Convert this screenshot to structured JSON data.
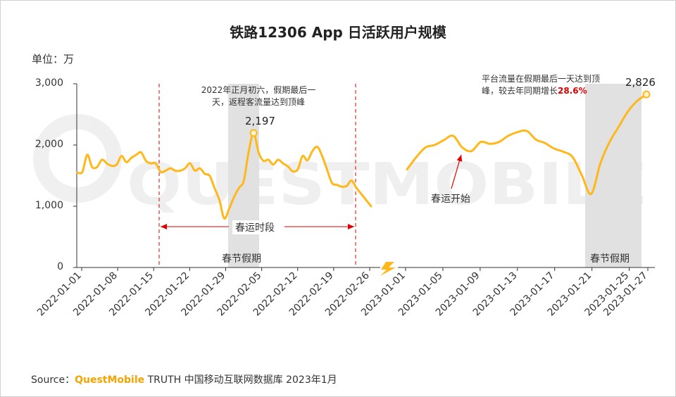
{
  "chart_data": {
    "type": "line",
    "title": "铁路12306 App 日活跃用户规模",
    "unit_label": "单位：万",
    "y_ticks": [
      "3,000",
      "2,000",
      "1,000",
      "0"
    ],
    "ylim": [
      0,
      3000
    ],
    "grid": false,
    "series_color": "#FFB81C",
    "panels": [
      {
        "x_tick_labels": [
          "2022-01-01",
          "2022-01-08",
          "2022-01-15",
          "2022-01-22",
          "2022-01-29",
          "2022-02-05",
          "2022-02-12",
          "2022-02-19",
          "2022-02-26"
        ],
        "x_start": "2022-01-01",
        "x_end": "2022-03-02",
        "x": [
          "2022-01-01",
          "2022-01-02",
          "2022-01-03",
          "2022-01-04",
          "2022-01-05",
          "2022-01-06",
          "2022-01-07",
          "2022-01-08",
          "2022-01-09",
          "2022-01-10",
          "2022-01-11",
          "2022-01-12",
          "2022-01-13",
          "2022-01-14",
          "2022-01-15",
          "2022-01-16",
          "2022-01-17",
          "2022-01-18",
          "2022-01-19",
          "2022-01-20",
          "2022-01-21",
          "2022-01-22",
          "2022-01-23",
          "2022-01-24",
          "2022-01-25",
          "2022-01-26",
          "2022-01-27",
          "2022-01-28",
          "2022-01-29",
          "2022-01-30",
          "2022-01-31",
          "2022-02-01",
          "2022-02-02",
          "2022-02-03",
          "2022-02-04",
          "2022-02-05",
          "2022-02-06",
          "2022-02-07",
          "2022-02-08",
          "2022-02-09",
          "2022-02-10",
          "2022-02-11",
          "2022-02-12",
          "2022-02-13",
          "2022-02-14",
          "2022-02-15",
          "2022-02-16",
          "2022-02-17",
          "2022-02-18",
          "2022-02-19",
          "2022-02-20",
          "2022-02-21",
          "2022-02-22",
          "2022-02-23",
          "2022-02-24",
          "2022-02-25",
          "2022-02-26",
          "2022-02-27",
          "2022-02-28",
          "2022-03-01",
          "2022-03-02"
        ],
        "values": [
          1550,
          1560,
          1840,
          1640,
          1640,
          1760,
          1700,
          1660,
          1680,
          1820,
          1720,
          1790,
          1840,
          1880,
          1740,
          1700,
          1700,
          1560,
          1580,
          1620,
          1580,
          1580,
          1620,
          1700,
          1580,
          1620,
          1530,
          1500,
          1300,
          1100,
          800,
          960,
          1150,
          1300,
          1420,
          1900,
          2197,
          1880,
          1740,
          1760,
          1680,
          1760,
          1700,
          1650,
          1570,
          1600,
          1820,
          1750,
          1900,
          1970,
          1820,
          1600,
          1380,
          1350,
          1320,
          1330,
          1420,
          1300,
          1200,
          1100,
          1000
        ],
        "peak": {
          "label": "2,197",
          "value": 2197,
          "date": "2022-02-06"
        }
      },
      {
        "x_tick_labels": [
          "2023-01-01",
          "2023-01-05",
          "2023-01-09",
          "2023-01-13",
          "2023-01-17",
          "2023-01-21",
          "2023-01-25",
          "2023-01-27"
        ],
        "x_start": "2023-01-01",
        "x_end": "2023-01-27",
        "x": [
          "2023-01-01",
          "2023-01-02",
          "2023-01-03",
          "2023-01-04",
          "2023-01-05",
          "2023-01-06",
          "2023-01-07",
          "2023-01-08",
          "2023-01-09",
          "2023-01-10",
          "2023-01-11",
          "2023-01-12",
          "2023-01-13",
          "2023-01-14",
          "2023-01-15",
          "2023-01-16",
          "2023-01-17",
          "2023-01-18",
          "2023-01-19",
          "2023-01-20",
          "2023-01-21",
          "2023-01-22",
          "2023-01-23",
          "2023-01-24",
          "2023-01-25",
          "2023-01-26",
          "2023-01-27"
        ],
        "values": [
          1600,
          1800,
          1960,
          2000,
          2080,
          2150,
          1960,
          1900,
          2050,
          2020,
          2050,
          2150,
          2210,
          2230,
          2090,
          2030,
          1940,
          1890,
          1800,
          1500,
          1200,
          1700,
          2050,
          2300,
          2550,
          2720,
          2826
        ],
        "peak": {
          "label": "2,826",
          "value": 2826,
          "date": "2023-01-27"
        }
      }
    ],
    "annotations": {
      "holiday_label": "春节假期",
      "spring_rush_label": "春运时段",
      "rush_start_label": "春运开始",
      "note_2022": "2022年正月初六，假期最后一天，返程客流量达到顶峰",
      "note_2023_prefix": "平台流量在假期最后一天达到顶峰，较去年同期增长",
      "note_2023_pct": "28.6%"
    }
  },
  "source": {
    "prefix": "Source：",
    "brand": "QuestMobile",
    "suffix": " TRUTH 中国移动互联网数据库 2023年1月"
  },
  "watermark": "QUESTMOBILE"
}
